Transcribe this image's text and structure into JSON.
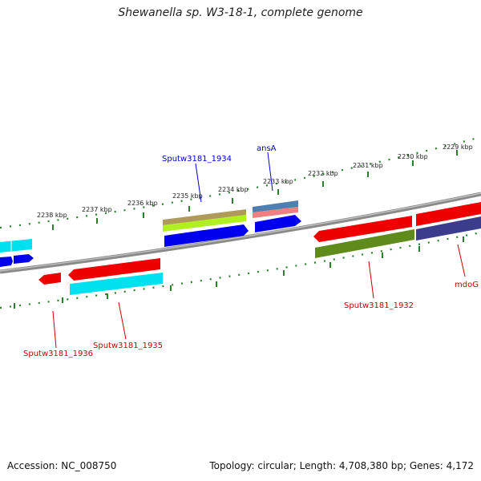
{
  "title": "Shewanella sp. W3-18-1, complete genome",
  "footer": {
    "accession": "Accession: NC_008750",
    "summary": "Topology: circular; Length: 4,708,380 bp; Genes: 4,172"
  },
  "ticks": [
    "2229 kbp",
    "2230 kbp",
    "2231 kbp",
    "2232 kbp",
    "2233 kbp",
    "2234 kbp",
    "2235 kbp",
    "2236 kbp",
    "2237 kbp",
    "2238 kbp"
  ],
  "gene_labels": [
    {
      "name": "Sputw3181_1934",
      "color": "#0000cc"
    },
    {
      "name": "ansA",
      "color": "#0000cc"
    },
    {
      "name": "Sputw3181_1932",
      "color": "#cc0000"
    },
    {
      "name": "mdoG",
      "color": "#cc0000"
    },
    {
      "name": "Sputw3181_1935",
      "color": "#cc0000"
    },
    {
      "name": "Sputw3181_1936",
      "color": "#cc0000"
    }
  ],
  "colors": {
    "backbone": "#777777",
    "tick": "#2a7f2a",
    "red": "#ee0000",
    "cyan": "#00e0f0",
    "blue": "#0000ee",
    "olive": "#5f8a1c",
    "purple": "#3c3c8c",
    "khaki": "#b09a5a",
    "lime": "#b0f020",
    "steel": "#4f7fb0",
    "pink": "#f08080"
  }
}
